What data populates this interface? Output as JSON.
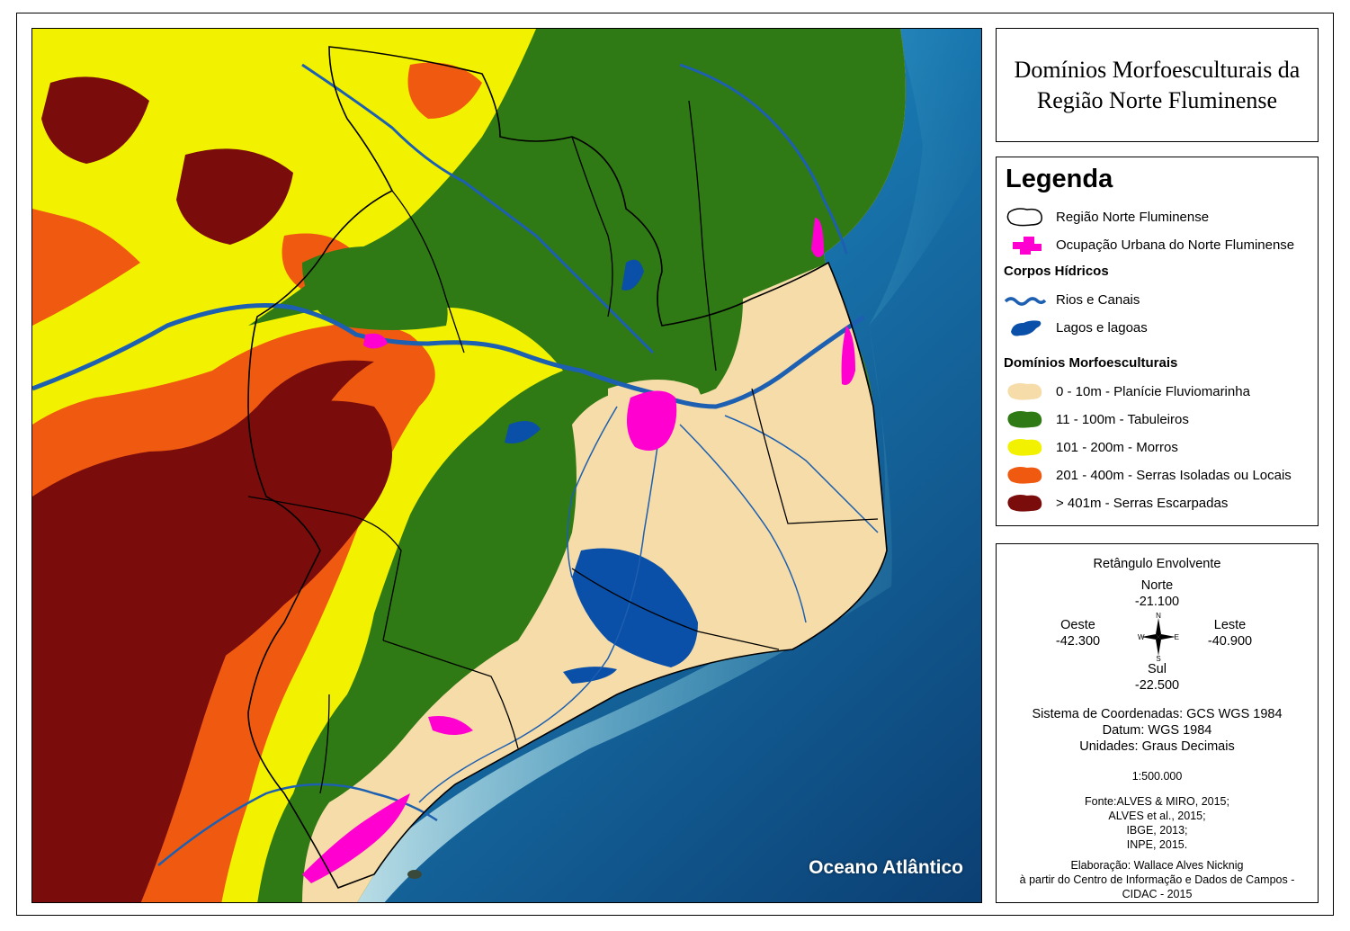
{
  "title": "Domínios Morfoesculturais da Região Norte Fluminense",
  "map": {
    "ocean_label": "Oceano Atlântico"
  },
  "legend": {
    "heading": "Legenda",
    "items": [
      {
        "label": "Região Norte Fluminense",
        "color": "#ffffff"
      },
      {
        "label": "Ocupação Urbana do Norte Fluminense",
        "color": "#ff00d0"
      }
    ],
    "water_heading": "Corpos Hídricos",
    "water_items": [
      {
        "label": "Rios e Canais",
        "color": "#1d5fb0"
      },
      {
        "label": "Lagos e lagoas",
        "color": "#0a4fa8"
      }
    ],
    "domains_heading": "Domínios Morfoesculturais",
    "domains": [
      {
        "label": "0 - 10m - Planície Fluviomarinha",
        "color": "#f6dca8"
      },
      {
        "label": "11 - 100m  - Tabuleiros",
        "color": "#2f7a14"
      },
      {
        "label": "101 - 200m - Morros",
        "color": "#f2f200"
      },
      {
        "label": "201 - 400m - Serras Isoladas ou Locais",
        "color": "#ef5a10"
      },
      {
        "label": "> 401m - Serras Escarpadas",
        "color": "#7a0c0c"
      }
    ]
  },
  "bbox": {
    "heading": "Retângulo Envolvente",
    "north_label": "Norte",
    "north_value": "-21.100",
    "west_label": "Oeste",
    "west_value": "-42.300",
    "east_label": "Leste",
    "east_value": "-40.900",
    "south_label": "Sul",
    "south_value": "-22.500",
    "compass": {
      "n": "N",
      "s": "S",
      "e": "E",
      "w": "W"
    }
  },
  "info": {
    "coord_system": "Sistema de Coordenadas: GCS WGS 1984",
    "datum": "Datum: WGS 1984",
    "units": "Unidades: Graus Decimais",
    "scale": "1:500.000",
    "sources": [
      "Fonte:ALVES & MIRO, 2015;",
      "ALVES et al., 2015;",
      "IBGE, 2013;",
      "INPE, 2015."
    ],
    "credits": [
      "Elaboração: Wallace Alves Nicknig",
      "à partir do Centro de Informação e Dados de Campos -",
      "CIDAC - 2015"
    ]
  }
}
